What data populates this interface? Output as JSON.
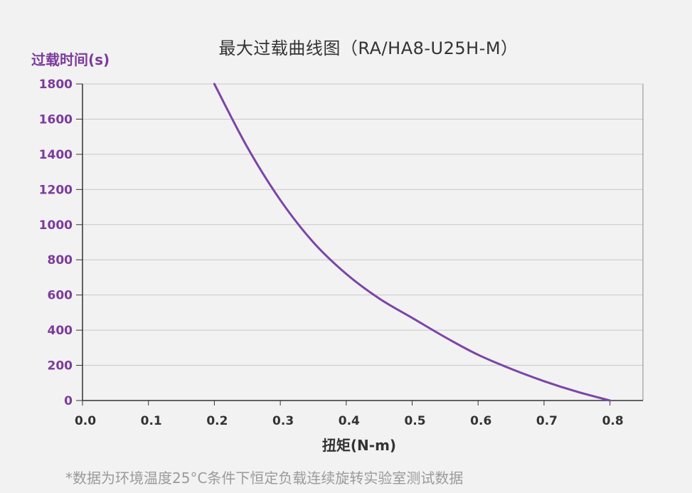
{
  "chart_data": {
    "type": "line",
    "title": "最大过载曲线图（RA/HA8-U25H-M）",
    "xlabel": "扭矩(N-m)",
    "ylabel": "过载时间(s)",
    "xlim": [
      0.0,
      0.85
    ],
    "ylim": [
      0,
      1800
    ],
    "x_ticks": [
      "0.0",
      "0.1",
      "0.2",
      "0.3",
      "0.4",
      "0.5",
      "0.6",
      "0.7",
      "0.8"
    ],
    "y_ticks": [
      "0",
      "200",
      "400",
      "600",
      "800",
      "1000",
      "1200",
      "1400",
      "1600",
      "1800"
    ],
    "grid": "horizontal",
    "legend": "none",
    "colors": {
      "curve": "#7b45a8",
      "y_text": "#7c3a9c",
      "x_text": "#333333",
      "grid": "#c8c8c8",
      "axis": "#333333"
    },
    "series": [
      {
        "x": [
          0.2,
          0.25,
          0.3,
          0.35,
          0.4,
          0.45,
          0.5,
          0.55,
          0.6,
          0.65,
          0.7,
          0.75,
          0.8
        ],
        "y": [
          1800,
          1440,
          1140,
          900,
          720,
          580,
          470,
          360,
          260,
          180,
          110,
          50,
          0
        ]
      }
    ]
  },
  "footnote": "*数据为环境温度25°C条件下恒定负载连续旋转实验室测试数据"
}
